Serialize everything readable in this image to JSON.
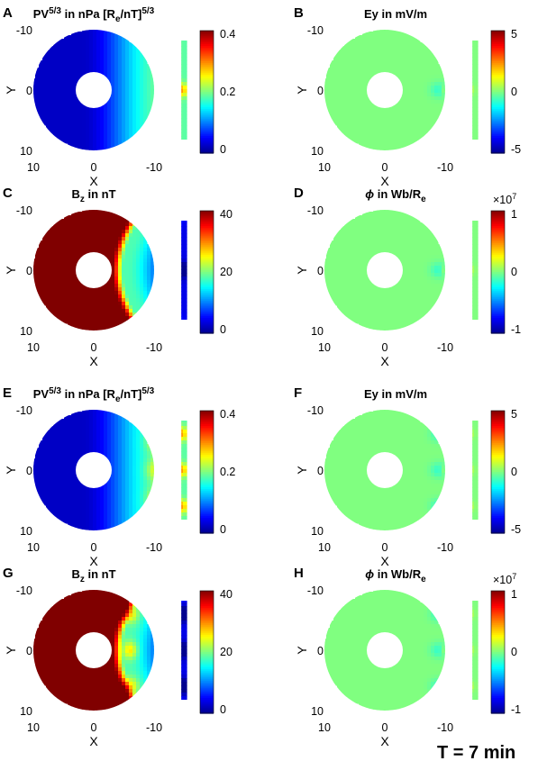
{
  "figure": {
    "time_label": "T = 7 min"
  },
  "colors": {
    "jet": [
      "#00008f",
      "#0000ff",
      "#0080ff",
      "#00ffff",
      "#80ff80",
      "#ffff00",
      "#ff8000",
      "#ff0000",
      "#800000"
    ],
    "hole": "#ffffff"
  },
  "chart_data": [
    {
      "id": "A",
      "letter": "A",
      "type": "heatmap",
      "title_parts": [
        {
          "t": "PV"
        },
        {
          "t": "5/3",
          "sup": true
        },
        {
          "t": " in nPa [R"
        },
        {
          "t": "e",
          "sub": true
        },
        {
          "t": "/nT]"
        },
        {
          "t": "5/3",
          "sup": true
        }
      ],
      "xlabel": "X",
      "ylabel": "Y",
      "xticks": [
        "10",
        "0",
        "-10"
      ],
      "yticks": [
        "-10",
        "0",
        "10"
      ],
      "xlim": [
        10,
        -16
      ],
      "ylim": [
        -10,
        10
      ],
      "colorbar": {
        "ticks": [
          "0.4",
          "0.2",
          "0"
        ],
        "min": 0,
        "max": 0.4,
        "exponent": ""
      },
      "pattern": {
        "kind": "pv",
        "features": [
          0
        ]
      }
    },
    {
      "id": "B",
      "letter": "B",
      "type": "heatmap",
      "title_parts": [
        {
          "t": "Ey in mV/m"
        }
      ],
      "xlabel": "X",
      "ylabel": "Y",
      "xticks": [
        "10",
        "0",
        "-10"
      ],
      "yticks": [
        "-10",
        "0",
        "10"
      ],
      "xlim": [
        10,
        -16
      ],
      "ylim": [
        -10,
        10
      ],
      "colorbar": {
        "ticks": [
          "5",
          "0",
          "-5"
        ],
        "min": -5,
        "max": 5,
        "exponent": ""
      },
      "pattern": {
        "kind": "ey",
        "features": [
          0
        ]
      }
    },
    {
      "id": "C",
      "letter": "C",
      "type": "heatmap",
      "title_parts": [
        {
          "t": "B"
        },
        {
          "t": "z",
          "sub": true
        },
        {
          "t": " in nT"
        }
      ],
      "xlabel": "X",
      "ylabel": "Y",
      "xticks": [
        "10",
        "0",
        "-10"
      ],
      "yticks": [
        "-10",
        "0",
        "10"
      ],
      "xlim": [
        10,
        -16
      ],
      "ylim": [
        -10,
        10
      ],
      "colorbar": {
        "ticks": [
          "40",
          "20",
          "0"
        ],
        "min": 0,
        "max": 40,
        "exponent": ""
      },
      "pattern": {
        "kind": "bz",
        "features": [
          0
        ]
      }
    },
    {
      "id": "D",
      "letter": "D",
      "type": "heatmap",
      "title_parts": [
        {
          "t": "ϕ",
          "it": true
        },
        {
          "t": " in Wb/R"
        },
        {
          "t": "e",
          "sub": true
        }
      ],
      "xlabel": "X",
      "ylabel": "Y",
      "xticks": [
        "10",
        "0",
        "-10"
      ],
      "yticks": [
        "-10",
        "0",
        "10"
      ],
      "xlim": [
        10,
        -16
      ],
      "ylim": [
        -10,
        10
      ],
      "colorbar": {
        "ticks": [
          "1",
          "0",
          "-1"
        ],
        "min": -1,
        "max": 1,
        "exponent": "×10",
        "exponent_power": "7"
      },
      "pattern": {
        "kind": "phi",
        "features": [
          0
        ]
      }
    },
    {
      "id": "E",
      "letter": "E",
      "type": "heatmap",
      "title_parts": [
        {
          "t": "PV"
        },
        {
          "t": "5/3",
          "sup": true
        },
        {
          "t": " in nPa [R"
        },
        {
          "t": "e",
          "sub": true
        },
        {
          "t": "/nT]"
        },
        {
          "t": "5/3",
          "sup": true
        }
      ],
      "xlabel": "X",
      "ylabel": "Y",
      "xticks": [
        "10",
        "0",
        "-10"
      ],
      "yticks": [
        "-10",
        "0",
        "10"
      ],
      "xlim": [
        10,
        -16
      ],
      "ylim": [
        -10,
        10
      ],
      "colorbar": {
        "ticks": [
          "0.4",
          "0.2",
          "0"
        ],
        "min": 0,
        "max": 0.4,
        "exponent": ""
      },
      "pattern": {
        "kind": "pv",
        "features": [
          -6,
          0,
          6
        ]
      }
    },
    {
      "id": "F",
      "letter": "F",
      "type": "heatmap",
      "title_parts": [
        {
          "t": "Ey in mV/m"
        }
      ],
      "xlabel": "X",
      "ylabel": "Y",
      "xticks": [
        "10",
        "0",
        "-10"
      ],
      "yticks": [
        "-10",
        "0",
        "10"
      ],
      "xlim": [
        10,
        -16
      ],
      "ylim": [
        -10,
        10
      ],
      "colorbar": {
        "ticks": [
          "5",
          "0",
          "-5"
        ],
        "min": -5,
        "max": 5,
        "exponent": ""
      },
      "pattern": {
        "kind": "ey",
        "features": [
          -6,
          0,
          6
        ]
      }
    },
    {
      "id": "G",
      "letter": "G",
      "type": "heatmap",
      "title_parts": [
        {
          "t": "B"
        },
        {
          "t": "z",
          "sub": true
        },
        {
          "t": " in nT"
        }
      ],
      "xlabel": "X",
      "ylabel": "Y",
      "xticks": [
        "10",
        "0",
        "-10"
      ],
      "yticks": [
        "-10",
        "0",
        "10"
      ],
      "xlim": [
        10,
        -16
      ],
      "ylim": [
        -10,
        10
      ],
      "colorbar": {
        "ticks": [
          "40",
          "20",
          "0"
        ],
        "min": 0,
        "max": 40,
        "exponent": ""
      },
      "pattern": {
        "kind": "bz",
        "features": [
          -6,
          0,
          6
        ]
      }
    },
    {
      "id": "H",
      "letter": "H",
      "type": "heatmap",
      "title_parts": [
        {
          "t": "ϕ",
          "it": true
        },
        {
          "t": " in Wb/R"
        },
        {
          "t": "e",
          "sub": true
        }
      ],
      "xlabel": "X",
      "ylabel": "Y",
      "xticks": [
        "10",
        "0",
        "-10"
      ],
      "yticks": [
        "-10",
        "0",
        "10"
      ],
      "xlim": [
        10,
        -16
      ],
      "ylim": [
        -10,
        10
      ],
      "colorbar": {
        "ticks": [
          "1",
          "0",
          "-1"
        ],
        "min": -1,
        "max": 1,
        "exponent": "×10",
        "exponent_power": "7"
      },
      "pattern": {
        "kind": "phi",
        "features": [
          -6,
          0,
          6
        ]
      }
    }
  ]
}
